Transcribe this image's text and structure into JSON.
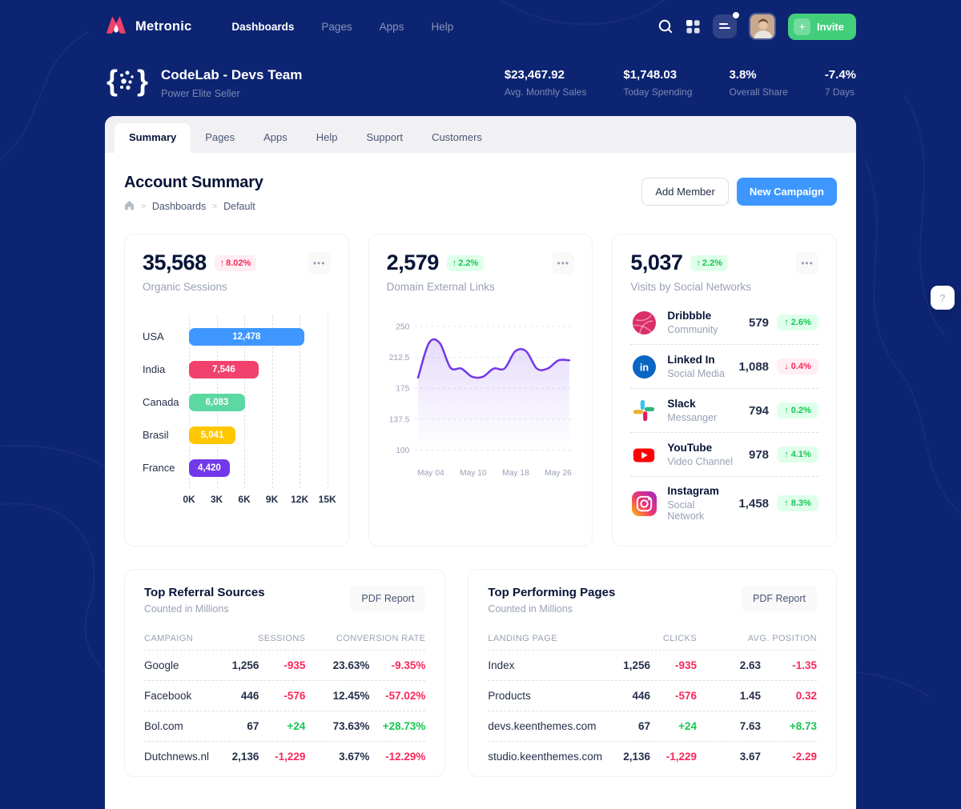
{
  "navbar": {
    "brand": "Metronic",
    "menu": [
      {
        "label": "Dashboards",
        "active": true
      },
      {
        "label": "Pages",
        "active": false
      },
      {
        "label": "Apps",
        "active": false
      },
      {
        "label": "Help",
        "active": false
      }
    ],
    "invite_label": "Invite",
    "invite_plus": "+"
  },
  "team_header": {
    "name": "CodeLab - Devs Team",
    "subtitle": "Power Elite Seller",
    "stats": [
      {
        "value": "$23,467.92",
        "label": "Avg. Monthly Sales"
      },
      {
        "value": "$1,748.03",
        "label": "Today Spending"
      },
      {
        "value": "3.8%",
        "label": "Overall Share"
      },
      {
        "value": "-7.4%",
        "label": "7 Days"
      }
    ]
  },
  "tabs": [
    {
      "label": "Summary",
      "active": true
    },
    {
      "label": "Pages",
      "active": false
    },
    {
      "label": "Apps",
      "active": false
    },
    {
      "label": "Help",
      "active": false
    },
    {
      "label": "Support",
      "active": false
    },
    {
      "label": "Customers",
      "active": false
    }
  ],
  "page": {
    "title": "Account Summary",
    "breadcrumb": [
      "Dashboards",
      "Default"
    ],
    "crumb_sep": ">",
    "add_member_label": "Add Member",
    "new_campaign_label": "New Campaign",
    "dots_label": "•••"
  },
  "cards": {
    "organic": {
      "value": "35,568",
      "delta_arrow": "↑",
      "delta": "8.02%",
      "delta_color": "red",
      "label": "Organic Sessions"
    },
    "domain": {
      "value": "2,579",
      "delta_arrow": "↑",
      "delta": "2.2%",
      "delta_color": "green",
      "label": "Domain External Links"
    },
    "social": {
      "value": "5,037",
      "delta_arrow": "↑",
      "delta": "2.2%",
      "delta_color": "green",
      "label": "Visits by Social Networks",
      "rows": [
        {
          "icon": "dribbble-icon",
          "name": "Dribbble",
          "category": "Community",
          "value": "579",
          "arrow": "↑",
          "delta": "2.6%",
          "color": "green"
        },
        {
          "icon": "linkedin-icon",
          "name": "Linked In",
          "category": "Social Media",
          "value": "1,088",
          "arrow": "↓",
          "delta": "0.4%",
          "color": "red"
        },
        {
          "icon": "slack-icon",
          "name": "Slack",
          "category": "Messanger",
          "value": "794",
          "arrow": "↑",
          "delta": "0.2%",
          "color": "green"
        },
        {
          "icon": "youtube-icon",
          "name": "YouTube",
          "category": "Video Channel",
          "value": "978",
          "arrow": "↑",
          "delta": "4.1%",
          "color": "green"
        },
        {
          "icon": "instagram-icon",
          "name": "Instagram",
          "category": "Social Network",
          "value": "1,458",
          "arrow": "↑",
          "delta": "8.3%",
          "color": "green"
        }
      ]
    }
  },
  "chart_data": [
    {
      "type": "bar",
      "orientation": "horizontal",
      "title": "Organic Sessions by Country",
      "categories": [
        "USA",
        "India",
        "Canada",
        "Brasil",
        "France"
      ],
      "values": [
        12478,
        7546,
        6083,
        5041,
        4420
      ],
      "value_labels": [
        "12,478",
        "7,546",
        "6,083",
        "5,041",
        "4,420"
      ],
      "colors": [
        "#3E97FF",
        "#F1416C",
        "#5CD8A2",
        "#FFC700",
        "#7239EA"
      ],
      "xlim": [
        0,
        15000
      ],
      "x_ticks": [
        "0K",
        "3K",
        "6K",
        "9K",
        "12K",
        "15K"
      ],
      "grid": "dashed-vertical"
    },
    {
      "type": "area",
      "title": "Domain External Links trend",
      "color": "#7239EA",
      "y": [
        188,
        230,
        230,
        200,
        199,
        189,
        189,
        199,
        199,
        220,
        220,
        199,
        199,
        209,
        209
      ],
      "ylim": [
        100,
        250
      ],
      "y_ticks": [
        "250",
        "212.5",
        "175",
        "137.5",
        "100"
      ],
      "x_tick_labels": [
        "May 04",
        "May 10",
        "May 18",
        "May 26"
      ],
      "grid": "dashed-horizontal",
      "legend": "none"
    }
  ],
  "tables": [
    {
      "title": "Top Referral Sources",
      "subtitle": "Counted in Millions",
      "action": "PDF Report",
      "columns": [
        "CAMPAIGN",
        "SESSIONS",
        "CONVERSION RATE"
      ],
      "rows": [
        {
          "name": "Google",
          "value": "1,256",
          "value_delta": "-935",
          "value_dir": "neg",
          "rate": "23.63%",
          "rate_delta": "-9.35%",
          "rate_dir": "neg"
        },
        {
          "name": "Facebook",
          "value": "446",
          "value_delta": "-576",
          "value_dir": "neg",
          "rate": "12.45%",
          "rate_delta": "-57.02%",
          "rate_dir": "neg"
        },
        {
          "name": "Bol.com",
          "value": "67",
          "value_delta": "+24",
          "value_dir": "pos",
          "rate": "73.63%",
          "rate_delta": "+28.73%",
          "rate_dir": "pos"
        },
        {
          "name": "Dutchnews.nl",
          "value": "2,136",
          "value_delta": "-1,229",
          "value_dir": "neg",
          "rate": "3.67%",
          "rate_delta": "-12.29%",
          "rate_dir": "neg"
        }
      ]
    },
    {
      "title": "Top Performing Pages",
      "subtitle": "Counted in Millions",
      "action": "PDF Report",
      "columns": [
        "LANDING PAGE",
        "CLICKS",
        "AVG. POSITION"
      ],
      "rows": [
        {
          "name": "Index",
          "value": "1,256",
          "value_delta": "-935",
          "value_dir": "neg",
          "rate": "2.63",
          "rate_delta": "-1.35",
          "rate_dir": "neg"
        },
        {
          "name": "Products",
          "value": "446",
          "value_delta": "-576",
          "value_dir": "neg",
          "rate": "1.45",
          "rate_delta": "0.32",
          "rate_dir": "neg"
        },
        {
          "name": "devs.keenthemes.com",
          "value": "67",
          "value_delta": "+24",
          "value_dir": "pos",
          "rate": "7.63",
          "rate_delta": "+8.73",
          "rate_dir": "pos"
        },
        {
          "name": "studio.keenthemes.com",
          "value": "2,136",
          "value_delta": "-1,229",
          "value_dir": "neg",
          "rate": "3.67",
          "rate_delta": "-2.29",
          "rate_dir": "neg"
        }
      ]
    }
  ],
  "floating_help": "?",
  "colors": {
    "background": "#0D2472",
    "primary": "#3E97FF",
    "success": "#17C653",
    "danger": "#F8285A",
    "invite_green": "#43CE7B",
    "tab_strip": "#F1F1F4",
    "muted_text": "#99A1B7"
  }
}
